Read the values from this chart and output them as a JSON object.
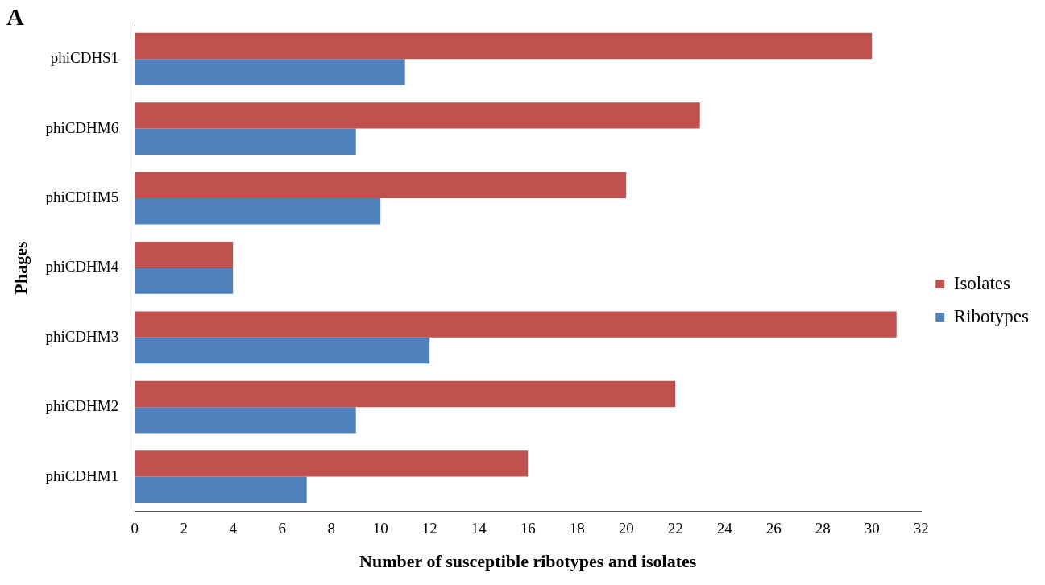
{
  "chart_data": {
    "type": "bar",
    "orientation": "horizontal",
    "xlabel": "Number of susceptible ribotypes and isolates",
    "ylabel": "Phages",
    "annotations": [
      "A"
    ],
    "categories": [
      "phiCDHS1",
      "phiCDHM6",
      "phiCDHM5",
      "phiCDHM4",
      "phiCDHM3",
      "phiCDHM2",
      "phiCDHM1"
    ],
    "series": [
      {
        "name": "Isolates",
        "color": "#c0504d",
        "values": [
          30,
          23,
          20,
          4,
          31,
          22,
          16
        ]
      },
      {
        "name": "Ribotypes",
        "color": "#4f81bd",
        "values": [
          11,
          9,
          10,
          4,
          12,
          9,
          7
        ]
      }
    ],
    "xlim": [
      0,
      32
    ],
    "xticks": [
      0,
      2,
      4,
      6,
      8,
      10,
      12,
      14,
      16,
      18,
      20,
      22,
      24,
      26,
      28,
      30,
      32
    ],
    "grid": false,
    "legend": "right"
  }
}
